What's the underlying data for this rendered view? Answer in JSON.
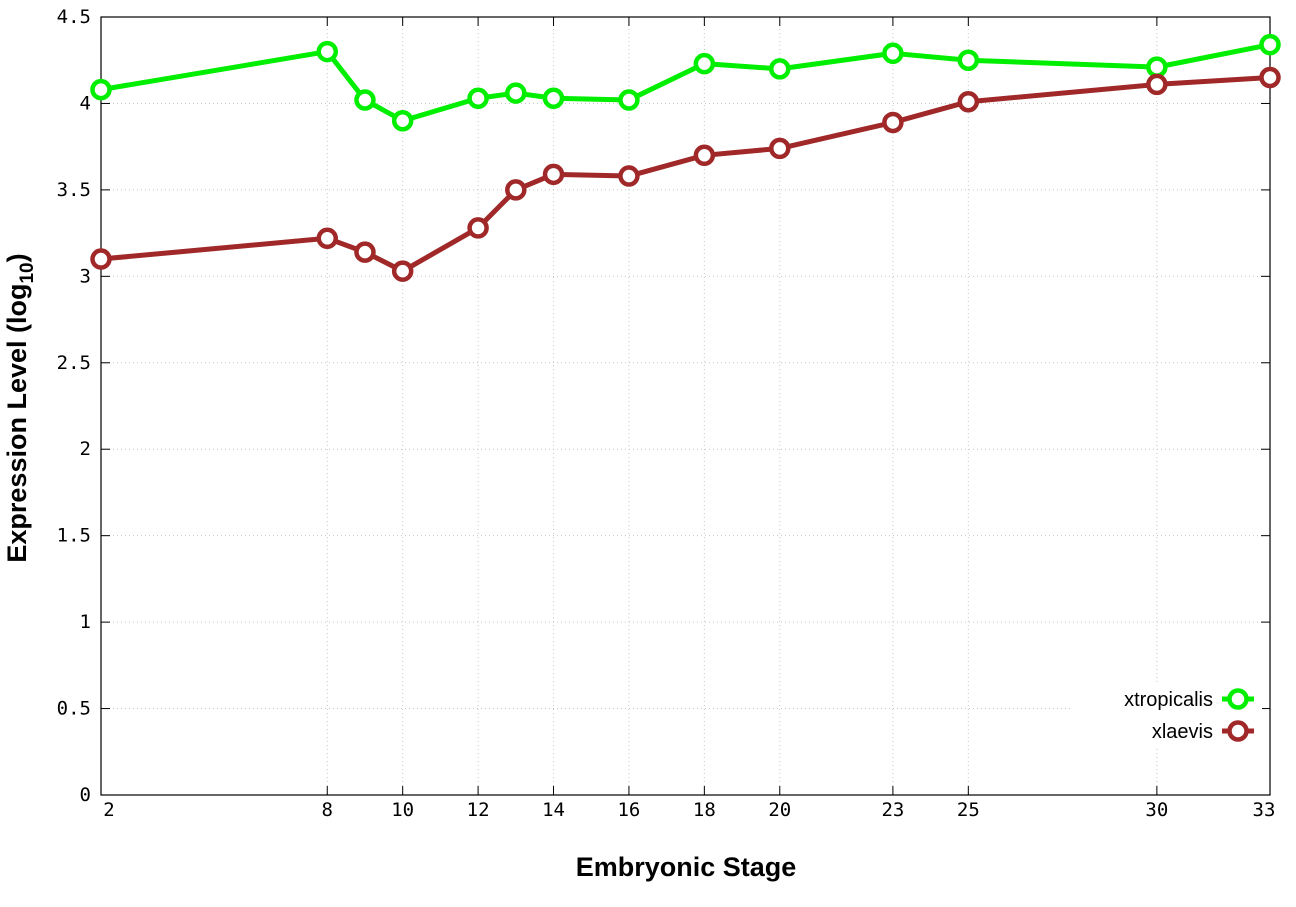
{
  "chart_data": {
    "type": "line",
    "xlabel": "Embryonic Stage",
    "ylabel": "Expression Level (log",
    "ylabel_subscript": "10",
    "ylabel_suffix": ")",
    "x_ticks": [
      2,
      8,
      10,
      12,
      14,
      16,
      18,
      20,
      23,
      25,
      30,
      33
    ],
    "x_tick_labels": [
      "2",
      "8",
      "10",
      "12",
      "14",
      "16",
      "18",
      "20",
      "23",
      "25",
      "30",
      "33"
    ],
    "y_ticks": [
      0,
      0.5,
      1,
      1.5,
      2,
      2.5,
      3,
      3.5,
      4,
      4.5
    ],
    "y_tick_labels": [
      "0",
      "0.5",
      "1",
      "1.5",
      "2",
      "2.5",
      "3",
      "3.5",
      "4",
      "4.5"
    ],
    "xlim": [
      2,
      33
    ],
    "ylim": [
      0,
      4.5
    ],
    "grid": true,
    "legend_position": "bottom-right",
    "series": [
      {
        "name": "xtropicalis",
        "color": "#00ee00",
        "x": [
          2,
          8,
          9,
          10,
          12,
          13,
          14,
          16,
          18,
          20,
          23,
          25,
          30,
          33
        ],
        "y": [
          4.08,
          4.3,
          4.02,
          3.9,
          4.03,
          4.06,
          4.03,
          4.02,
          4.23,
          4.2,
          4.29,
          4.25,
          4.21,
          4.34
        ]
      },
      {
        "name": "xlaevis",
        "color": "#a02828",
        "x": [
          2,
          8,
          9,
          10,
          12,
          13,
          14,
          16,
          18,
          20,
          23,
          25,
          30,
          33
        ],
        "y": [
          3.1,
          3.22,
          3.14,
          3.03,
          3.28,
          3.5,
          3.59,
          3.58,
          3.7,
          3.74,
          3.89,
          4.01,
          4.11,
          4.15
        ]
      }
    ]
  }
}
